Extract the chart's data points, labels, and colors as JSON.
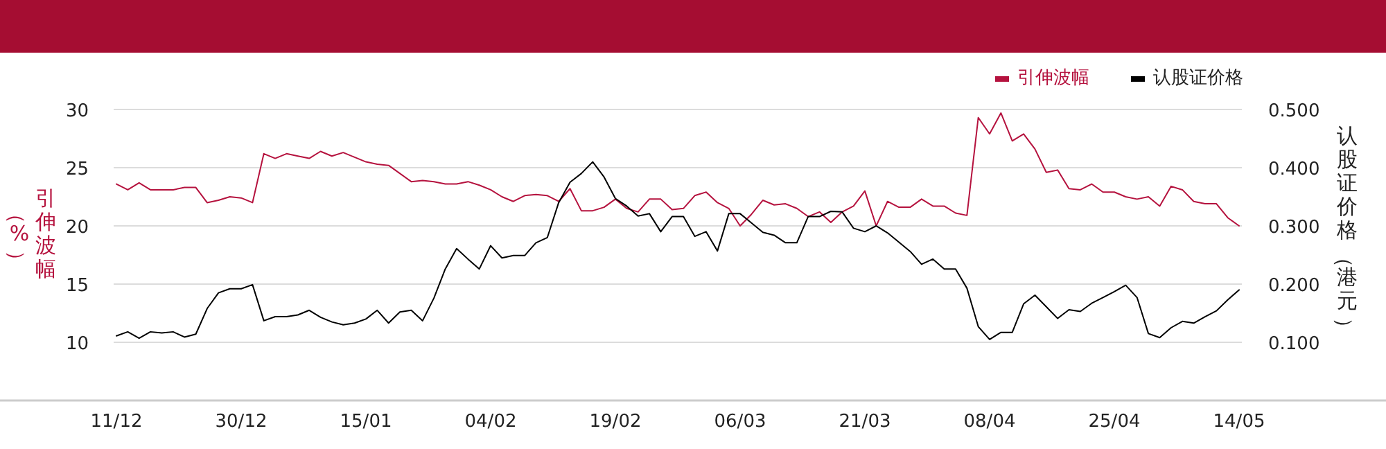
{
  "chart_data": {
    "type": "line",
    "ylabel": "引伸波幅（%）",
    "y2label": "认股证价格（港元）",
    "categories": [
      "11/12",
      null,
      null,
      null,
      null,
      null,
      null,
      null,
      null,
      null,
      null,
      "30/12",
      null,
      null,
      null,
      null,
      null,
      null,
      null,
      null,
      null,
      null,
      "15/01",
      null,
      null,
      null,
      null,
      null,
      null,
      null,
      null,
      null,
      null,
      "04/02",
      null,
      null,
      null,
      null,
      null,
      null,
      null,
      null,
      null,
      null,
      "19/02",
      null,
      null,
      null,
      null,
      null,
      null,
      null,
      null,
      null,
      null,
      "06/03",
      null,
      null,
      null,
      null,
      null,
      null,
      null,
      null,
      null,
      null,
      "21/03",
      null,
      null,
      null,
      null,
      null,
      null,
      null,
      null,
      null,
      null,
      "08/04",
      null,
      null,
      null,
      null,
      null,
      null,
      null,
      null,
      null,
      null,
      "25/04",
      null,
      null,
      null,
      null,
      null,
      null,
      null,
      null,
      null,
      null,
      "14/05"
    ],
    "series": [
      {
        "name": "引伸波幅",
        "color": "#b5123e",
        "values": [
          23.6,
          23.1,
          23.7,
          23.1,
          23.1,
          23.1,
          23.3,
          23.3,
          22.0,
          22.2,
          22.5,
          22.4,
          22.0,
          26.2,
          25.8,
          26.2,
          26.0,
          25.8,
          26.4,
          26.0,
          26.3,
          25.9,
          25.5,
          25.3,
          25.2,
          24.5,
          23.8,
          23.9,
          23.8,
          23.6,
          23.6,
          23.8,
          23.5,
          23.1,
          22.5,
          22.1,
          22.6,
          22.7,
          22.6,
          22.1,
          23.2,
          21.3,
          21.3,
          21.6,
          22.3,
          21.5,
          21.2,
          22.3,
          22.3,
          21.4,
          21.5,
          22.6,
          22.9,
          22.0,
          21.5,
          20.0,
          21.0,
          22.2,
          21.8,
          21.9,
          21.5,
          20.8,
          21.2,
          20.3,
          21.2,
          21.7,
          23.0,
          20.0,
          22.1,
          21.6,
          21.6,
          22.3,
          21.7,
          21.7,
          21.1,
          20.9,
          29.3,
          27.9,
          29.7,
          27.3,
          27.9,
          26.6,
          24.6,
          24.8,
          23.2,
          23.1,
          23.6,
          22.9,
          22.9,
          22.5,
          22.3,
          22.5,
          21.7,
          23.4,
          23.1,
          22.1,
          21.9,
          21.9,
          20.7,
          20.0
        ]
      },
      {
        "name": "认股证价格",
        "color": "#000000",
        "axis": "y2",
        "values": [
          0.111,
          0.118,
          0.107,
          0.118,
          0.116,
          0.118,
          0.109,
          0.114,
          0.158,
          0.185,
          0.192,
          0.192,
          0.199,
          0.137,
          0.144,
          0.144,
          0.147,
          0.155,
          0.143,
          0.135,
          0.13,
          0.133,
          0.14,
          0.155,
          0.133,
          0.152,
          0.155,
          0.137,
          0.176,
          0.226,
          0.261,
          0.243,
          0.226,
          0.266,
          0.245,
          0.249,
          0.249,
          0.271,
          0.28,
          0.34,
          0.375,
          0.39,
          0.41,
          0.384,
          0.347,
          0.334,
          0.317,
          0.321,
          0.29,
          0.316,
          0.316,
          0.282,
          0.29,
          0.257,
          0.321,
          0.321,
          0.305,
          0.289,
          0.284,
          0.271,
          0.271,
          0.316,
          0.316,
          0.325,
          0.324,
          0.296,
          0.29,
          0.3,
          0.288,
          0.272,
          0.256,
          0.234,
          0.243,
          0.226,
          0.226,
          0.193,
          0.127,
          0.105,
          0.117,
          0.117,
          0.166,
          0.181,
          0.161,
          0.141,
          0.156,
          0.153,
          0.167,
          0.177,
          0.187,
          0.198,
          0.177,
          0.115,
          0.108,
          0.125,
          0.136,
          0.133,
          0.144,
          0.154,
          0.173,
          0.19
        ]
      }
    ],
    "ylim": [
      5,
      30
    ],
    "yticks": [
      10,
      15,
      20,
      25,
      30
    ],
    "y2lim": [
      0,
      0.5
    ],
    "y2ticks": [
      {
        "value": 0.1,
        "label": "0.100"
      },
      {
        "value": 0.2,
        "label": "0.200"
      },
      {
        "value": 0.3,
        "label": "0.300"
      },
      {
        "value": 0.4,
        "label": "0.400"
      },
      {
        "value": 0.5,
        "label": "0.500"
      }
    ],
    "grid": "y",
    "legend": "top right"
  }
}
